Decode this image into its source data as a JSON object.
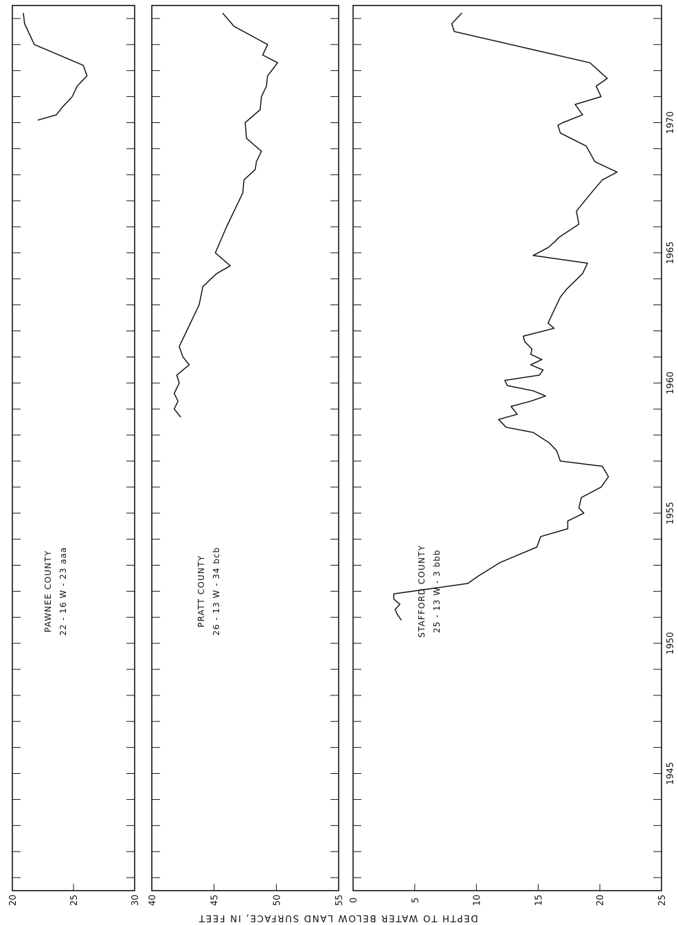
{
  "figure": {
    "y_axis_label": "DEPTH TO WATER BELOW LAND SURFACE, IN FEET",
    "year_ticks": [
      "1945",
      "1950",
      "1955",
      "1960",
      "1965",
      "1970"
    ]
  },
  "chart_data": [
    {
      "type": "line",
      "title": "PAWNEE COUNTY",
      "subtitle": "22 - 16 W - 23 aaa",
      "xlabel": "",
      "ylabel": "DEPTH TO WATER BELOW LAND SURFACE, IN FEET",
      "xlim": [
        1940.5,
        1974.5
      ],
      "ylim": [
        20,
        30
      ],
      "depth_ticks": [
        "20",
        "25",
        "30"
      ],
      "grid": false,
      "series": [
        {
          "x": [
            1974.2,
            1973.8,
            1973.0,
            1972.2,
            1971.8,
            1971.4,
            1971.0,
            1970.6,
            1970.3,
            1970.1
          ],
          "y": [
            20.9,
            21.0,
            21.8,
            25.8,
            26.1,
            25.3,
            24.9,
            24.1,
            23.6,
            22.1
          ]
        }
      ]
    },
    {
      "type": "line",
      "title": "PRATT COUNTY",
      "subtitle": "26 - 13 W - 34 bcb",
      "xlabel": "",
      "ylabel": "DEPTH TO WATER BELOW LAND SURFACE, IN FEET",
      "xlim": [
        1940.5,
        1974.5
      ],
      "ylim": [
        40,
        55
      ],
      "depth_ticks": [
        "40",
        "45",
        "50",
        "55"
      ],
      "grid": false,
      "series": [
        {
          "x": [
            1974.2,
            1973.7,
            1973.0,
            1972.6,
            1972.3,
            1971.8,
            1971.4,
            1971.0,
            1970.5,
            1970.0,
            1969.4,
            1968.9,
            1968.5,
            1968.2,
            1967.8,
            1967.3,
            1966.0,
            1965.0,
            1964.5,
            1964.2,
            1963.7,
            1963.0,
            1962.0,
            1961.4,
            1961.0,
            1960.7,
            1960.3,
            1960.0,
            1959.6,
            1959.3,
            1959.0,
            1958.7
          ],
          "y": [
            45.7,
            46.6,
            49.3,
            48.9,
            50.1,
            49.3,
            49.2,
            48.8,
            48.7,
            47.5,
            47.6,
            48.8,
            48.4,
            48.3,
            47.4,
            47.3,
            46.0,
            45.1,
            46.3,
            45.2,
            44.1,
            43.8,
            42.8,
            42.2,
            42.5,
            43.0,
            42.0,
            42.2,
            41.8,
            42.1,
            41.8,
            42.3
          ]
        }
      ]
    },
    {
      "type": "line",
      "title": "STAFFORD COUNTY",
      "subtitle": "25 - 13 W - 3 bbb",
      "xlabel": "",
      "ylabel": "DEPTH TO WATER BELOW LAND SURFACE, IN FEET",
      "xlim": [
        1940.5,
        1974.5
      ],
      "ylim": [
        0,
        25
      ],
      "depth_ticks": [
        "0",
        "5",
        "10",
        "15",
        "20",
        "25"
      ],
      "grid": false,
      "series": [
        {
          "x": [
            1974.2,
            1973.8,
            1973.5,
            1972.3,
            1971.7,
            1971.4,
            1971.0,
            1970.7,
            1970.3,
            1970.0,
            1969.9,
            1969.6,
            1969.1,
            1968.5,
            1968.1,
            1967.8,
            1967.3,
            1966.6,
            1966.1,
            1965.6,
            1965.4,
            1965.2,
            1964.9,
            1964.6,
            1964.2,
            1963.6,
            1963.3,
            1962.9,
            1962.5,
            1962.3,
            1962.1,
            1961.8,
            1961.6,
            1961.3,
            1961.1,
            1960.9,
            1960.7,
            1960.5,
            1960.3,
            1960.1,
            1959.9,
            1959.7,
            1959.5,
            1959.3,
            1959.1,
            1958.8,
            1958.6,
            1958.3,
            1958.1,
            1957.7,
            1957.4,
            1957.0,
            1956.8,
            1956.4,
            1956.0,
            1955.6,
            1955.2,
            1955.0,
            1954.7,
            1954.4,
            1954.1,
            1953.7,
            1953.1,
            1952.6,
            1952.3,
            1951.9,
            1951.7,
            1951.5,
            1951.3,
            1951.1,
            1950.9
          ],
          "y": [
            8.8,
            8.0,
            8.2,
            19.2,
            20.6,
            19.7,
            20.1,
            18.0,
            18.6,
            17.0,
            16.6,
            16.8,
            18.9,
            19.6,
            21.4,
            20.2,
            19.3,
            18.1,
            18.3,
            16.7,
            16.3,
            15.8,
            14.6,
            19.0,
            18.6,
            17.3,
            16.8,
            16.4,
            16.0,
            15.8,
            16.3,
            13.8,
            13.9,
            14.5,
            14.4,
            15.3,
            14.4,
            15.4,
            15.1,
            12.3,
            12.5,
            14.6,
            15.6,
            14.4,
            12.8,
            13.3,
            11.8,
            12.4,
            14.6,
            15.9,
            16.5,
            16.8,
            20.2,
            20.7,
            20.1,
            18.5,
            18.3,
            18.7,
            17.4,
            17.4,
            15.2,
            14.9,
            11.9,
            10.2,
            9.3,
            3.3,
            3.3,
            3.8,
            3.4,
            3.6,
            3.9
          ]
        }
      ]
    }
  ]
}
